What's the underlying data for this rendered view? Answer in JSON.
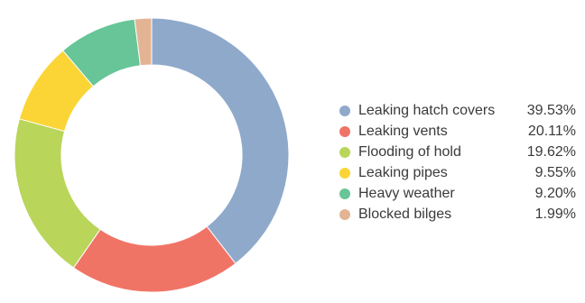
{
  "chart_data": {
    "type": "pie",
    "style": "donut",
    "title": "",
    "legend_position": "right",
    "slices": [
      {
        "label": "Leaking hatch covers",
        "value": 39.53,
        "display": "39.53%",
        "color": "#8fa9cb"
      },
      {
        "label": "Leaking vents",
        "value": 20.11,
        "display": "20.11%",
        "color": "#f07466"
      },
      {
        "label": "Flooding of hold",
        "value": 19.62,
        "display": "19.62%",
        "color": "#b9d55a"
      },
      {
        "label": "Leaking pipes",
        "value": 9.55,
        "display": "9.55%",
        "color": "#fad535"
      },
      {
        "label": "Heavy weather",
        "value": 9.2,
        "display": "9.20%",
        "color": "#67c598"
      },
      {
        "label": "Blocked bilges",
        "value": 1.99,
        "display": "1.99%",
        "color": "#e3b494"
      }
    ]
  }
}
